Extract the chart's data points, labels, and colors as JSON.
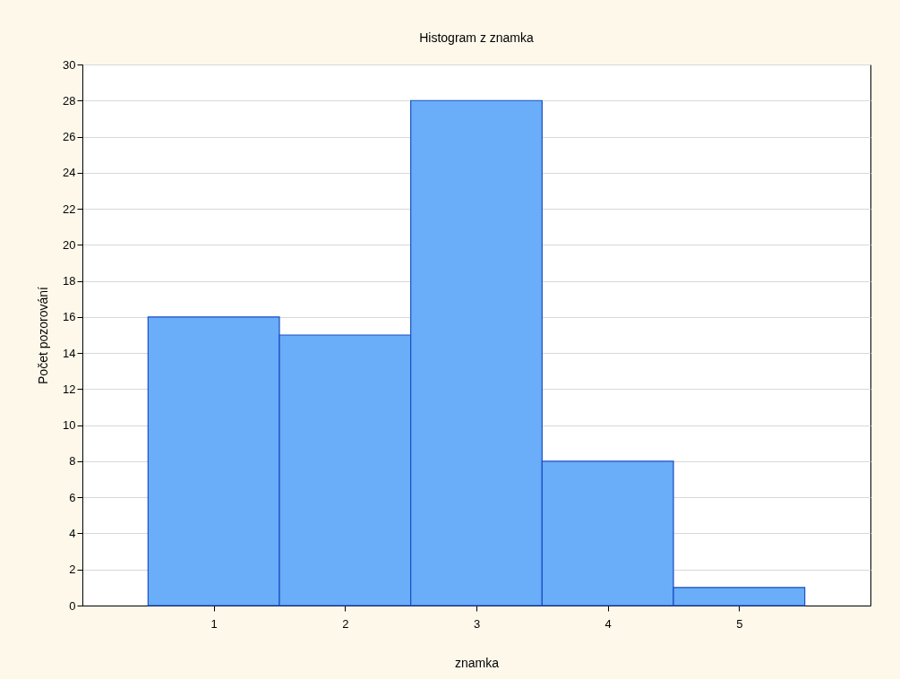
{
  "chart_data": {
    "type": "histogram",
    "title": "Histogram z znamka",
    "xlabel": "znamka",
    "ylabel": "Počet pozorování",
    "bins": [
      0.5,
      1.5,
      2.5,
      3.5,
      4.5,
      5.5
    ],
    "values": [
      16,
      15,
      28,
      8,
      1
    ],
    "color": "#6aadf8",
    "xlim": [
      0,
      6
    ],
    "xticks": [
      1,
      2,
      3,
      4,
      5
    ],
    "ylim": [
      0,
      30
    ],
    "yticks": [
      0,
      2,
      4,
      6,
      8,
      10,
      12,
      14,
      16,
      18,
      20,
      22,
      24,
      26,
      28,
      30
    ],
    "grid": "y"
  }
}
